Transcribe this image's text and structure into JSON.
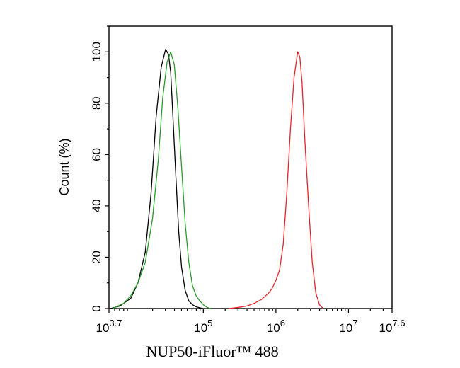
{
  "chart_data": {
    "type": "line",
    "title": "",
    "xlabel": "NUP50-iFluor™ 488",
    "ylabel": "Count (%)",
    "x_scale": "log10",
    "xlim_log10": [
      3.7,
      7.6
    ],
    "ylim": [
      0,
      110
    ],
    "y_ticks": [
      {
        "value": 0,
        "label": "0"
      },
      {
        "value": 20,
        "label": "20"
      },
      {
        "value": 40,
        "label": "40"
      },
      {
        "value": 60,
        "label": "60"
      },
      {
        "value": 80,
        "label": "80"
      },
      {
        "value": 100,
        "label": "100"
      }
    ],
    "x_ticks": [
      {
        "log10": 3.7,
        "base": "10",
        "exp": "3.7"
      },
      {
        "log10": 5,
        "base": "10",
        "exp": "5"
      },
      {
        "log10": 6,
        "base": "10",
        "exp": "6"
      },
      {
        "log10": 7,
        "base": "10",
        "exp": "7"
      },
      {
        "log10": 7.6,
        "base": "10",
        "exp": "7.6"
      }
    ],
    "grid": false,
    "series": [
      {
        "color": "#000000",
        "x_log10": [
          3.72,
          3.85,
          4.0,
          4.1,
          4.2,
          4.28,
          4.35,
          4.42,
          4.48,
          4.52,
          4.55,
          4.58,
          4.62,
          4.66,
          4.7,
          4.75,
          4.8,
          4.85,
          4.9,
          4.95,
          5.0
        ],
        "y": [
          0,
          1,
          4,
          10,
          22,
          45,
          75,
          94,
          101,
          99,
          92,
          75,
          52,
          30,
          16,
          7,
          3,
          1.5,
          0.7,
          0.3,
          0
        ]
      },
      {
        "color": "#2a9a2a",
        "x_log10": [
          3.75,
          3.9,
          4.0,
          4.1,
          4.2,
          4.3,
          4.38,
          4.44,
          4.5,
          4.55,
          4.6,
          4.65,
          4.7,
          4.75,
          4.8,
          4.85,
          4.9,
          4.95,
          5.0,
          5.05,
          5.1
        ],
        "y": [
          0,
          2,
          5,
          10,
          18,
          35,
          58,
          82,
          96,
          100,
          95,
          78,
          55,
          33,
          18,
          9,
          5,
          3,
          1.5,
          0.5,
          0
        ]
      },
      {
        "color": "#e8242a",
        "x_log10": [
          5.35,
          5.5,
          5.6,
          5.7,
          5.8,
          5.9,
          5.95,
          6.0,
          6.05,
          6.1,
          6.15,
          6.2,
          6.25,
          6.3,
          6.33,
          6.36,
          6.4,
          6.45,
          6.5,
          6.55,
          6.6,
          6.65
        ],
        "y": [
          0,
          0.5,
          1,
          2,
          3.5,
          6,
          8,
          11,
          15,
          25,
          45,
          70,
          90,
          100,
          98,
          88,
          65,
          40,
          18,
          6,
          1.5,
          0
        ]
      }
    ]
  }
}
